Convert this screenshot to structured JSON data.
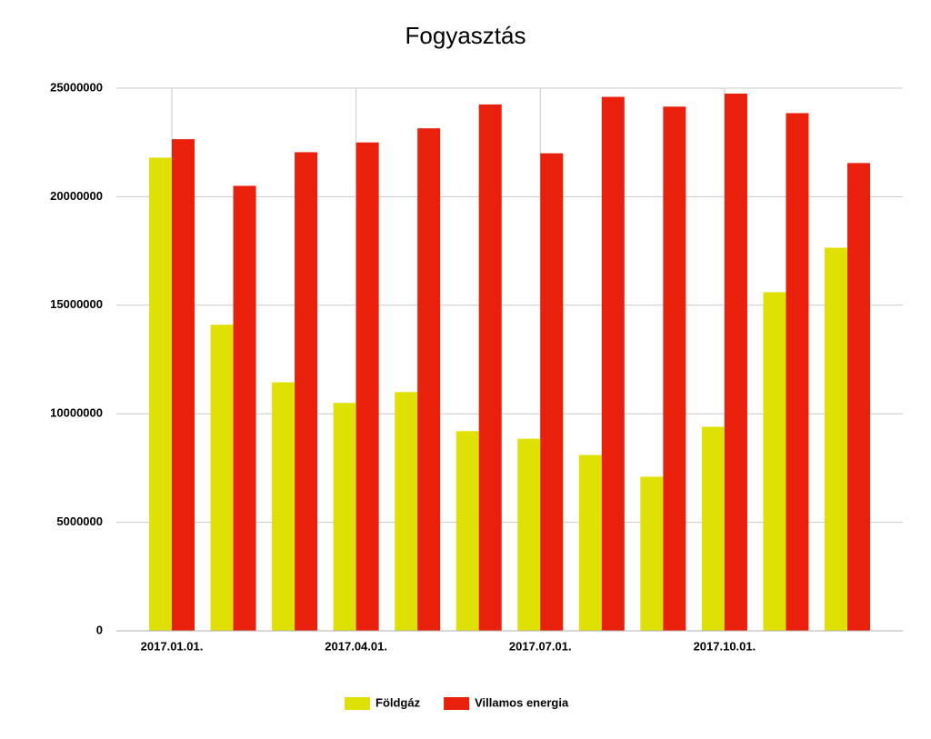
{
  "chart_data": {
    "type": "bar",
    "title": "Fogyasztás",
    "categories": [
      "2017.01.01.",
      null,
      null,
      "2017.04.01.",
      null,
      null,
      "2017.07.01.",
      null,
      null,
      "2017.10.01.",
      null,
      null
    ],
    "series": [
      {
        "name": "Földgáz",
        "color": "#dfe004",
        "values": [
          21800000,
          14100000,
          11450000,
          10500000,
          11000000,
          9200000,
          8850000,
          8100000,
          7100000,
          9400000,
          15600000,
          17650000
        ]
      },
      {
        "name": "Villamos energia",
        "color": "#e8200c",
        "values": [
          22650000,
          20500000,
          22050000,
          22500000,
          23150000,
          24250000,
          22000000,
          24600000,
          24150000,
          24750000,
          23850000,
          21550000
        ]
      }
    ],
    "ylim": [
      0,
      25000000
    ],
    "yticks": [
      0,
      5000000,
      10000000,
      15000000,
      20000000,
      25000000
    ],
    "grid": true,
    "legend": "bottom"
  }
}
